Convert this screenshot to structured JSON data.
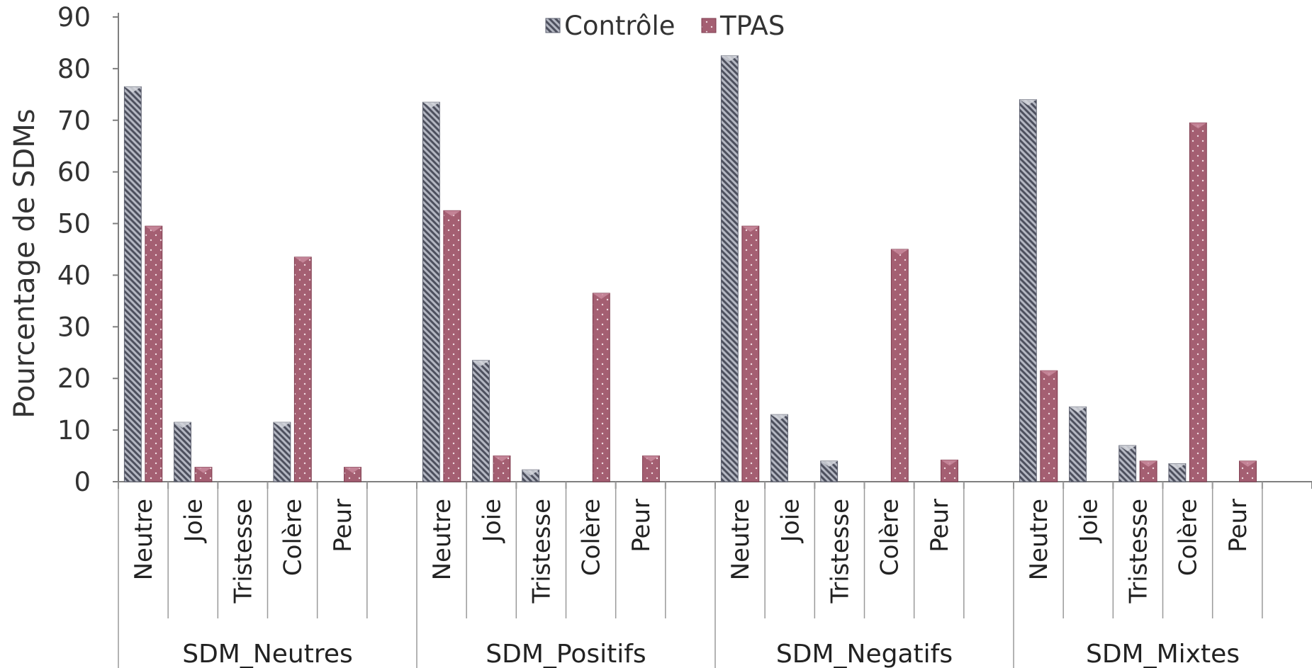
{
  "chart_data": {
    "type": "bar",
    "title": "",
    "xlabel": "",
    "ylabel": "Pourcentage de SDMs",
    "ylim": [
      0,
      90
    ],
    "yticks": [
      0,
      10,
      20,
      30,
      40,
      50,
      60,
      70,
      80,
      90
    ],
    "grid": false,
    "legend_position": "top-center",
    "groups": [
      {
        "name": "SDM_Neutres",
        "categories": [
          "Neutre",
          "Joie",
          "Tristesse",
          "Colère",
          "Peur"
        ]
      },
      {
        "name": "SDM_Positifs",
        "categories": [
          "Neutre",
          "Joie",
          "Tristesse",
          "Colère",
          "Peur"
        ]
      },
      {
        "name": "SDM_Negatifs",
        "categories": [
          "Neutre",
          "Joie",
          "Tristesse",
          "Colère",
          "Peur"
        ]
      },
      {
        "name": "SDM_Mixtes",
        "categories": [
          "Neutre",
          "Joie",
          "Tristesse",
          "Colère",
          "Peur"
        ]
      }
    ],
    "series": [
      {
        "name": "Contrôle",
        "color": "#8a8d99",
        "pattern": "diagonal-stripes",
        "values": [
          [
            76.5,
            11.5,
            0,
            11.5,
            0
          ],
          [
            73.5,
            23.5,
            2.3,
            0,
            0
          ],
          [
            82.5,
            13,
            4,
            0,
            0
          ],
          [
            74,
            14.5,
            7,
            3.5,
            0
          ]
        ]
      },
      {
        "name": "TPAS",
        "color": "#a45f72",
        "pattern": "dots",
        "values": [
          [
            49.5,
            2.8,
            0,
            43.5,
            2.8
          ],
          [
            52.5,
            5,
            0,
            36.5,
            5
          ],
          [
            49.5,
            0,
            0,
            45,
            4.2
          ],
          [
            21.5,
            0,
            4,
            69.5,
            4
          ]
        ]
      }
    ]
  }
}
